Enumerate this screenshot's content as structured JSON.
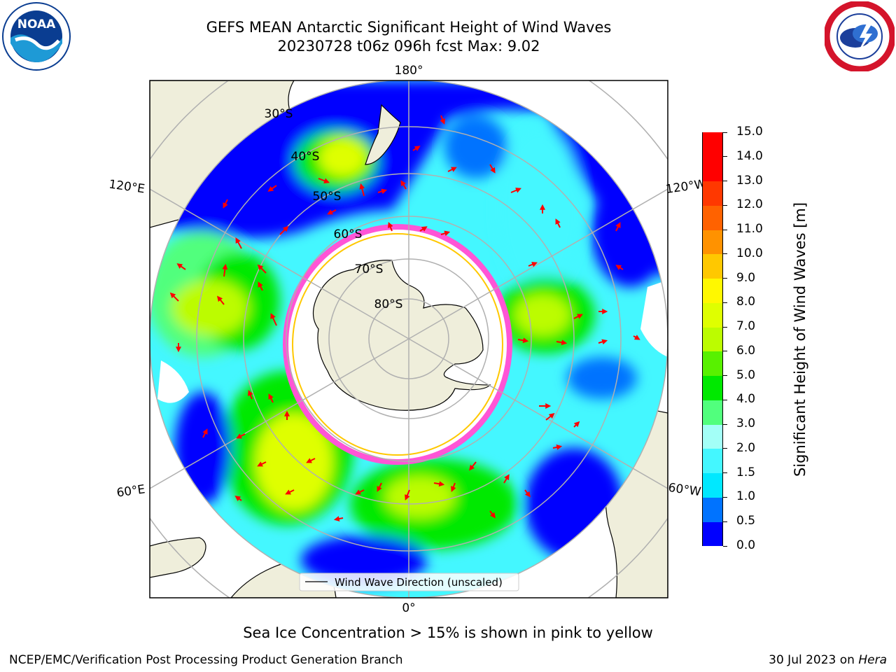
{
  "header": {
    "title_line1": "GEFS MEAN Antarctic Significant Height of Wind Waves",
    "title_line2": "20230728 t06z 096h fcst   Max: 9.02"
  },
  "logos": {
    "noaa": {
      "text": "NOAA",
      "color": "#0a3d91"
    },
    "nws": {
      "color": "#d4142b"
    }
  },
  "map": {
    "projection": "south-polar-stereographic",
    "longitude_labels": {
      "top": "180°",
      "bottom": "0°",
      "upper_left": "120°E",
      "lower_left": "60°E",
      "upper_right": "120°W",
      "lower_right": "60°W"
    },
    "latitude_labels": [
      "30°S",
      "40°S",
      "50°S",
      "60°S",
      "70°S",
      "80°S"
    ],
    "legend": {
      "label": "Wind Wave Direction (unscaled)",
      "arrow_color": "#ff0000"
    },
    "land_color": "#efeedb",
    "no_data_color": "#ffffff"
  },
  "colorbar": {
    "title": "Significant Height of Wind Waves [m]",
    "ticks": [
      "0.0",
      "0.5",
      "1.0",
      "1.5",
      "2.0",
      "3.0",
      "4.0",
      "5.0",
      "6.0",
      "7.0",
      "8.0",
      "9.0",
      "10.0",
      "11.0",
      "12.0",
      "13.0",
      "14.0",
      "15.0"
    ],
    "colors": [
      "#0000ff",
      "#0073ff",
      "#00e8ff",
      "#44f7ff",
      "#a3fff7",
      "#51ff7d",
      "#00e900",
      "#58f100",
      "#bcfc00",
      "#dfff00",
      "#fff800",
      "#ffc800",
      "#ff9200",
      "#ff6200",
      "#ff3800",
      "#ff0000",
      "#ff0000"
    ]
  },
  "footer": {
    "sea_ice_note": "Sea Ice Concentration > 15% is shown in pink to yellow",
    "credit": "NCEP/EMC/Verification Post Processing Product Generation Branch",
    "date_prefix": "30 Jul 2023 on ",
    "date_machine": "Hera"
  }
}
